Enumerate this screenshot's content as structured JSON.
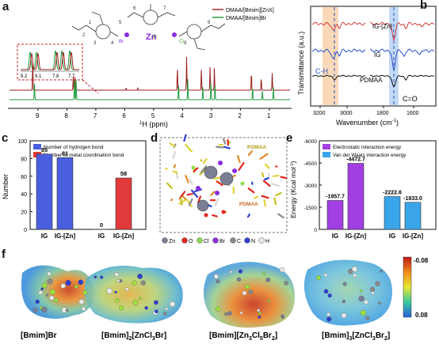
{
  "panels": {
    "a": {
      "label": "a",
      "legend": [
        "DMAA/[Bmim][ZnX]",
        "DMAA/[Bmim]Br"
      ],
      "colors": [
        "#9a1b1b",
        "#1e9a3a"
      ],
      "xlabel_main": "1H (ppm)",
      "xticks": [
        "9",
        "8",
        "7",
        "6",
        "5",
        "4",
        "3",
        "2",
        "1"
      ],
      "inset_ticks": [
        "9.2",
        "9.1",
        "7.8",
        "7.7"
      ],
      "atom_numbers": [
        "1",
        "2",
        "3",
        "4",
        "5",
        "6",
        "7",
        "8",
        "9"
      ],
      "zn_label": "Zn",
      "br_label": "Br",
      "cl_label": "Cl"
    },
    "b": {
      "label": "b",
      "ylabel": "Transmittance (a.u.)",
      "xlabel": "Wavenumber (cm",
      "xlabel_sup": "-1",
      "xlabel_end": ")",
      "xticks": [
        "3200",
        "3000",
        "1800",
        "1600"
      ],
      "traces": [
        "IG-[Zn]",
        "IG",
        "PDMAA"
      ],
      "trace_colors": [
        "#d23a3a",
        "#2a4fc9",
        "#111111"
      ],
      "annot_ch": "C-H",
      "annot_co": "C=O"
    },
    "c": {
      "label": "c",
      "ylabel": "Number",
      "legend": [
        "Number of hydrogen bond",
        "Number of metal coordination bond"
      ],
      "colors": [
        "#4a5fe0",
        "#e23a3a"
      ]
    },
    "d": {
      "label": "d",
      "tag_pomaa": "POMAA",
      "tag_pdmaa": "PDMAA",
      "legend_items": [
        "Zn",
        "O",
        "Cl",
        "Br",
        "C",
        "N",
        "H"
      ],
      "legend_colors": [
        "#7a7f96",
        "#e0241e",
        "#8fdc4a",
        "#8a2be2",
        "#8a8a8a",
        "#2f3fd0",
        "#e8e8e8"
      ]
    },
    "e": {
      "label": "e",
      "ylabel": "Energy (Kcal mol",
      "ylabel_sup": "-1",
      "ylabel_end": ")",
      "legend": [
        "Electrostatic interaction energy",
        "Van der Waals interaction energy"
      ],
      "colors": [
        "#a23fe3",
        "#3aa5e8"
      ]
    },
    "f": {
      "label": "f",
      "captions": [
        {
          "main": "[Bmim]Br",
          "sub": ""
        },
        {
          "main": "[Bmim]",
          "sub1": "2",
          "mid": "[ZnCl",
          "sub2": "3",
          "end": "Br]"
        },
        {
          "main": "[Bmim][Zn",
          "sub1": "3",
          "mid": "Cl",
          "sub2": "5",
          "mid2": "Br",
          "sub3": "2",
          "end": "]"
        },
        {
          "main": "[Bmim]",
          "sub1": "3",
          "mid": "[ZnCl",
          "sub2": "3",
          "mid2": "Br",
          "sub3": "2",
          "end": "]"
        }
      ],
      "colorbar_max": "-0.08",
      "colorbar_min": "0.08"
    }
  },
  "chart_data": [
    {
      "type": "bar",
      "panel": "c",
      "title": "",
      "xlabel": "",
      "ylabel": "Number",
      "categories": [
        "IG",
        "IG-[Zn]",
        "IG",
        "IG-[Zn]"
      ],
      "series": [
        {
          "name": "Number of hydrogen bond",
          "values": [
            85,
            81,
            null,
            null
          ]
        },
        {
          "name": "Number of metal coordination bond",
          "values": [
            null,
            null,
            0,
            58
          ]
        }
      ],
      "data_labels": [
        "85",
        "81",
        "0",
        "58"
      ],
      "yticks": [
        "0",
        "20",
        "40",
        "60",
        "80",
        "100"
      ],
      "ylim": [
        0,
        100
      ]
    },
    {
      "type": "bar",
      "panel": "e",
      "title": "",
      "xlabel": "",
      "ylabel": "Energy (Kcal mol-1)",
      "categories": [
        "IG",
        "IG-[Zn]",
        "IG",
        "IG-[Zn]"
      ],
      "series": [
        {
          "name": "Electrostatic interaction energy",
          "values": [
            -1957.7,
            -4472.7,
            null,
            null
          ]
        },
        {
          "name": "Van der Waals interaction energy",
          "values": [
            null,
            null,
            -2222.6,
            -1833.0
          ]
        }
      ],
      "data_labels": [
        "-1957.7",
        "-4472.7",
        "-2222.6",
        "-1833.0"
      ],
      "yticks": [
        "0",
        "-1500",
        "-3000",
        "-4500",
        "-6000"
      ],
      "ylim": [
        0,
        -6000
      ]
    }
  ]
}
